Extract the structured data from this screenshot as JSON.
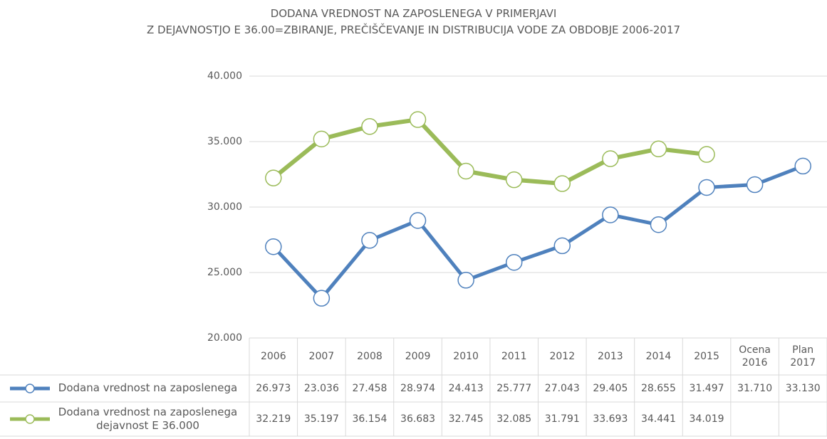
{
  "chart_data": {
    "type": "line",
    "title": "DODANA VREDNOST NA ZAPOSLENEGA V PRIMERJAVI",
    "subtitle": "Z DEJAVNOSTJO E 36.00=ZBIRANJE, PREČIŠČEVANJE IN DISTRIBUCIJA VODE ZA OBDOBJE 2006-2017",
    "categories": [
      "2006",
      "2007",
      "2008",
      "2009",
      "2010",
      "2011",
      "2012",
      "2013",
      "2014",
      "2015",
      "Ocena 2016",
      "Plan 2017"
    ],
    "series": [
      {
        "name": "Dodana vrednost na zaposlenega",
        "color": "#4f81bd",
        "values": [
          26973,
          23036,
          27458,
          28974,
          24413,
          25777,
          27043,
          29405,
          28655,
          31497,
          31710,
          33130
        ],
        "value_labels": [
          "26.973",
          "23.036",
          "27.458",
          "28.974",
          "24.413",
          "25.777",
          "27.043",
          "29.405",
          "28.655",
          "31.497",
          "31.710",
          "33.130"
        ]
      },
      {
        "name": "Dodana vrednost na zaposlenega dejavnost E 36.000",
        "color": "#9bbb59",
        "values": [
          32219,
          35197,
          36154,
          36683,
          32745,
          32085,
          31791,
          33693,
          34441,
          34019,
          null,
          null
        ],
        "value_labels": [
          "32.219",
          "35.197",
          "36.154",
          "36.683",
          "32.745",
          "32.085",
          "31.791",
          "33.693",
          "34.441",
          "34.019",
          null,
          null
        ]
      }
    ],
    "ylim": [
      20000,
      40000
    ],
    "yticks": [
      {
        "value": 20000,
        "label": "20.000"
      },
      {
        "value": 25000,
        "label": "25.000"
      },
      {
        "value": 30000,
        "label": "30.000"
      },
      {
        "value": 35000,
        "label": "35.000"
      },
      {
        "value": 40000,
        "label": "40.000"
      }
    ],
    "grid": true
  }
}
